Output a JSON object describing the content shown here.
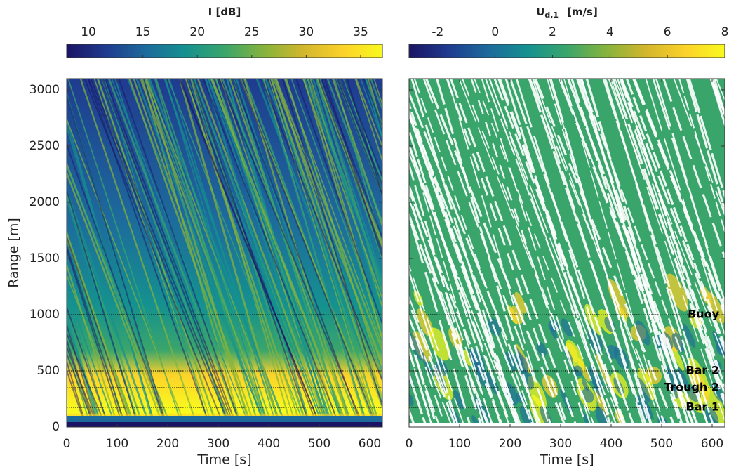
{
  "chart_data": [
    {
      "type": "heatmap",
      "colorbar_label": "I [dB]",
      "clim": [
        8,
        37
      ],
      "cticks": [
        10,
        15,
        20,
        25,
        30,
        35
      ],
      "colormap": [
        "#1b1464",
        "#1f3b8f",
        "#1d6a9c",
        "#15918f",
        "#3aa56b",
        "#86b33c",
        "#d2b62c",
        "#fcd22a",
        "#f9f91e"
      ],
      "xlabel": "Time [s]",
      "ylabel": "Range [m]",
      "xlim": [
        0,
        625
      ],
      "xticks": [
        0,
        100,
        200,
        300,
        400,
        500,
        600
      ],
      "ylim": [
        0,
        3100
      ],
      "yticks": [
        0,
        500,
        1000,
        1500,
        2000,
        2500,
        3000
      ],
      "reference_lines": [
        {
          "value": 1000
        },
        {
          "value": 500
        },
        {
          "value": 350
        },
        {
          "value": 175
        }
      ]
    },
    {
      "type": "heatmap",
      "colorbar_label": "U",
      "colorbar_label_subscript": "d,1",
      "colorbar_label_unit": "[m/s]",
      "clim": [
        -3,
        8
      ],
      "cticks": [
        -2,
        0,
        2,
        4,
        6,
        8
      ],
      "colormap": [
        "#1b1464",
        "#1f3b8f",
        "#1d6a9c",
        "#15918f",
        "#3aa56b",
        "#86b33c",
        "#d2b62c",
        "#fcd22a",
        "#f9f91e"
      ],
      "xlabel": "Time [s]",
      "xlim": [
        0,
        625
      ],
      "xticks": [
        0,
        100,
        200,
        300,
        400,
        500,
        600
      ],
      "ylim": [
        0,
        3100
      ],
      "yticks": [
        0,
        500,
        1000,
        1500,
        2000,
        2500,
        3000
      ],
      "reference_lines": [
        {
          "value": 1000,
          "label": "Buoy"
        },
        {
          "value": 500,
          "label": "Bar 2"
        },
        {
          "value": 350,
          "label": "Trough 2"
        },
        {
          "value": 175,
          "label": "Bar 1"
        }
      ]
    }
  ]
}
